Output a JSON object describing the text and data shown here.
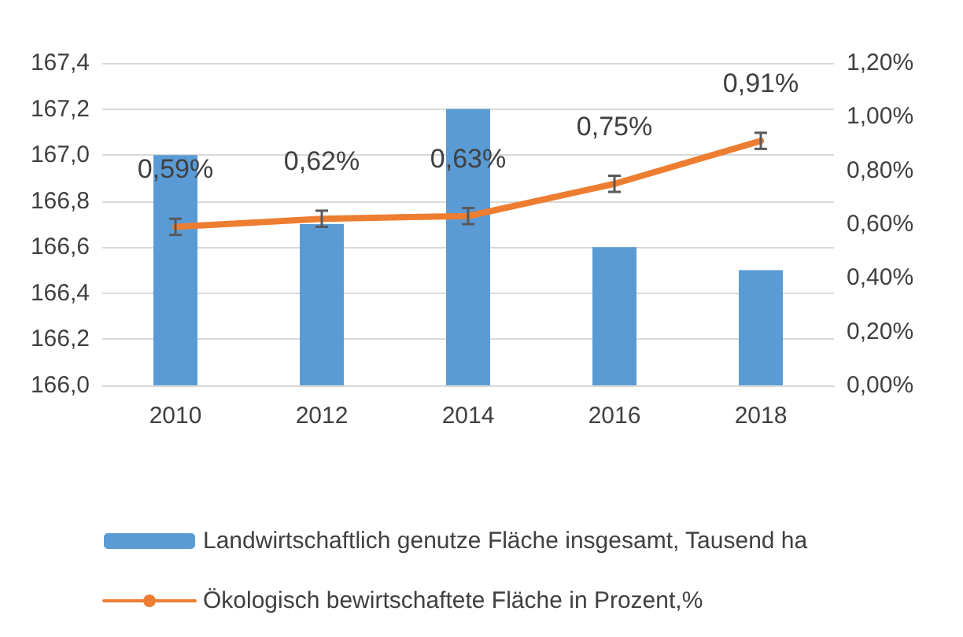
{
  "chart_data": {
    "type": "bar",
    "categories": [
      "2010",
      "2012",
      "2014",
      "2016",
      "2018"
    ],
    "series": [
      {
        "name": "Landwirtschaftlich genutze Fläche insgesamt, Tausend ha",
        "color": "#5b9bd5",
        "values": [
          167.0,
          166.7,
          167.2,
          166.6,
          166.5
        ]
      },
      {
        "type": "line",
        "axis": "y2",
        "name": "Ökologisch bewirtschaftete Fläche in Prozent,%",
        "color": "#ed7d31",
        "values": [
          0.59,
          0.62,
          0.63,
          0.75,
          0.91
        ],
        "errors": [
          0.03,
          0.03,
          0.03,
          0.03,
          0.03
        ],
        "value_labels": [
          "0,59%",
          "0,62%",
          "0,63%",
          "0,75%",
          "0,91%"
        ]
      }
    ],
    "ylim": [
      166.0,
      167.4
    ],
    "yticks": [
      {
        "value": 166.0,
        "label": "166,0"
      },
      {
        "value": 166.2,
        "label": "166,2"
      },
      {
        "value": 166.4,
        "label": "166,4"
      },
      {
        "value": 166.6,
        "label": "166,6"
      },
      {
        "value": 166.8,
        "label": "166,8"
      },
      {
        "value": 167.0,
        "label": "167,0"
      },
      {
        "value": 167.2,
        "label": "167,2"
      },
      {
        "value": 167.4,
        "label": "167,4"
      }
    ],
    "y2lim": [
      0,
      1.2
    ],
    "y2ticks": [
      {
        "value": 0,
        "label": "0,00%"
      },
      {
        "value": 0.2,
        "label": "0,20%"
      },
      {
        "value": 0.4,
        "label": "0,40%"
      },
      {
        "value": 0.6,
        "label": "0,60%"
      },
      {
        "value": 0.8,
        "label": "0,80%"
      },
      {
        "value": 1.0,
        "label": "1,00%"
      },
      {
        "value": 1.2,
        "label": "1,20%"
      }
    ],
    "grid": "y",
    "legend": "bottom",
    "marker": "none",
    "line_style": "solid"
  }
}
